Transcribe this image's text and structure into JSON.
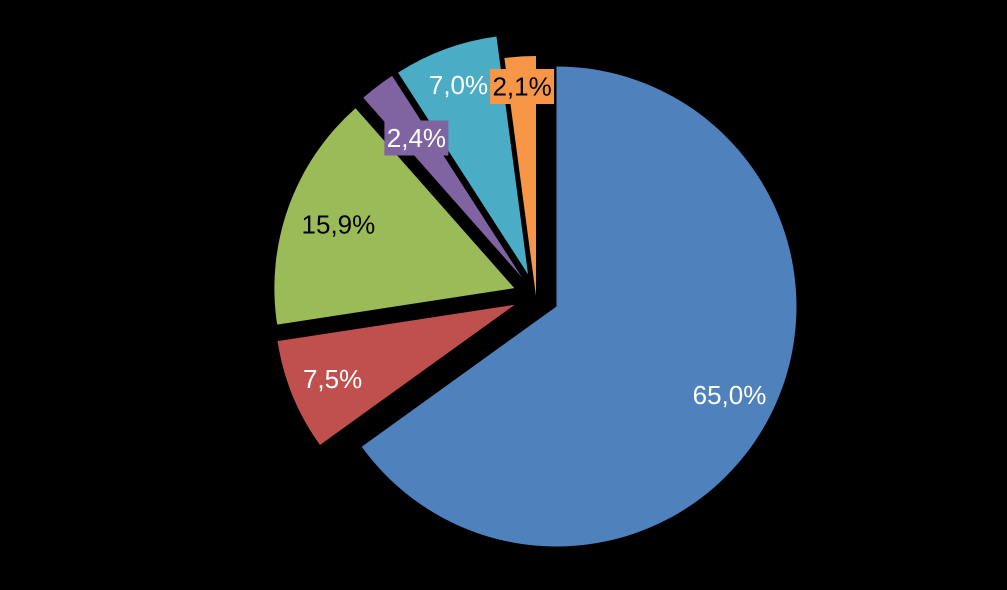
{
  "background_color": "#000000",
  "chart_data": {
    "type": "pie",
    "title": "",
    "legend": "none",
    "exploded": true,
    "start_angle_deg": 0,
    "direction": "clockwise",
    "values": [
      65.0,
      7.5,
      15.9,
      2.4,
      7.0,
      2.1
    ],
    "slice_labels": [
      "65,0%",
      "7,5%",
      "15,9%",
      "2,4%",
      "7,0%",
      "2,1%"
    ],
    "slice_colors": [
      "#4F81BD",
      "#C0504D",
      "#9BBB59",
      "#8064A2",
      "#4BACC6",
      "#F79646"
    ],
    "label_text_colors": [
      "#FFFFFF",
      "#FFFFFF",
      "#000000",
      "#FFFFFF",
      "#FFFFFF",
      "#000000"
    ],
    "label_has_box": [
      false,
      false,
      false,
      true,
      false,
      true
    ],
    "background": "#000000"
  }
}
